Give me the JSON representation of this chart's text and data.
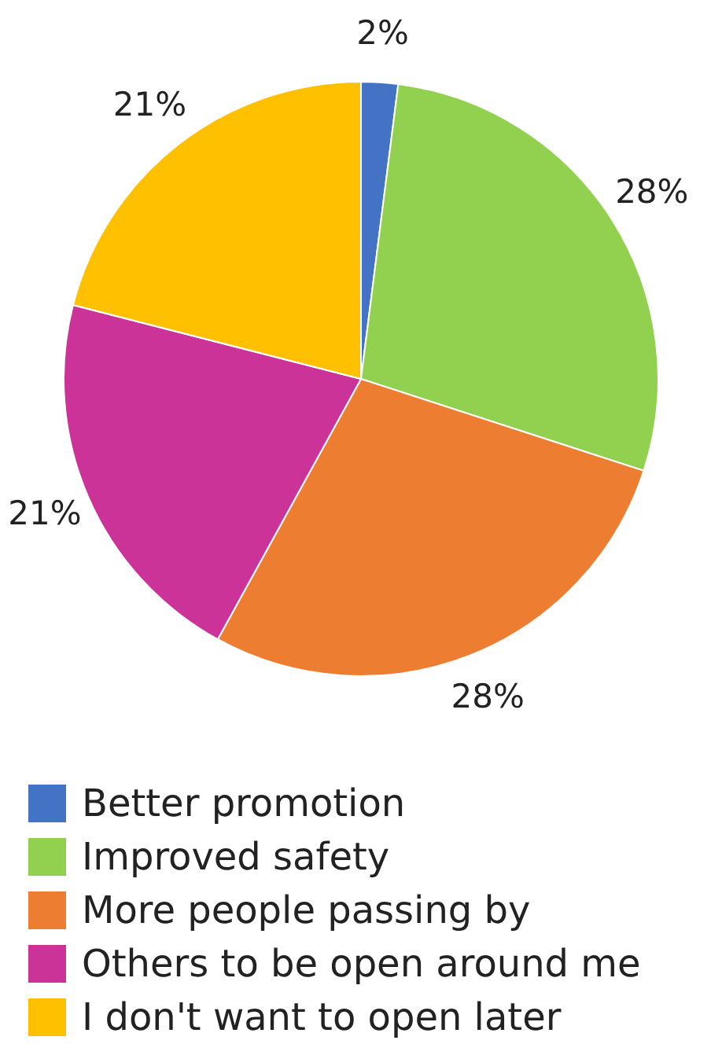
{
  "chart_data": {
    "type": "pie",
    "categories": [
      "Better promotion",
      "Improved safety",
      "More people passing by",
      "Others to be open around me",
      "I don't want to open later"
    ],
    "values": [
      2,
      28,
      28,
      21,
      21
    ],
    "colors": [
      "#4472c4",
      "#92d050",
      "#ed7d31",
      "#cc3399",
      "#ffc000"
    ],
    "value_labels": [
      "2%",
      "28%",
      "28%",
      "21%",
      "21%"
    ],
    "legend": "bottom"
  }
}
